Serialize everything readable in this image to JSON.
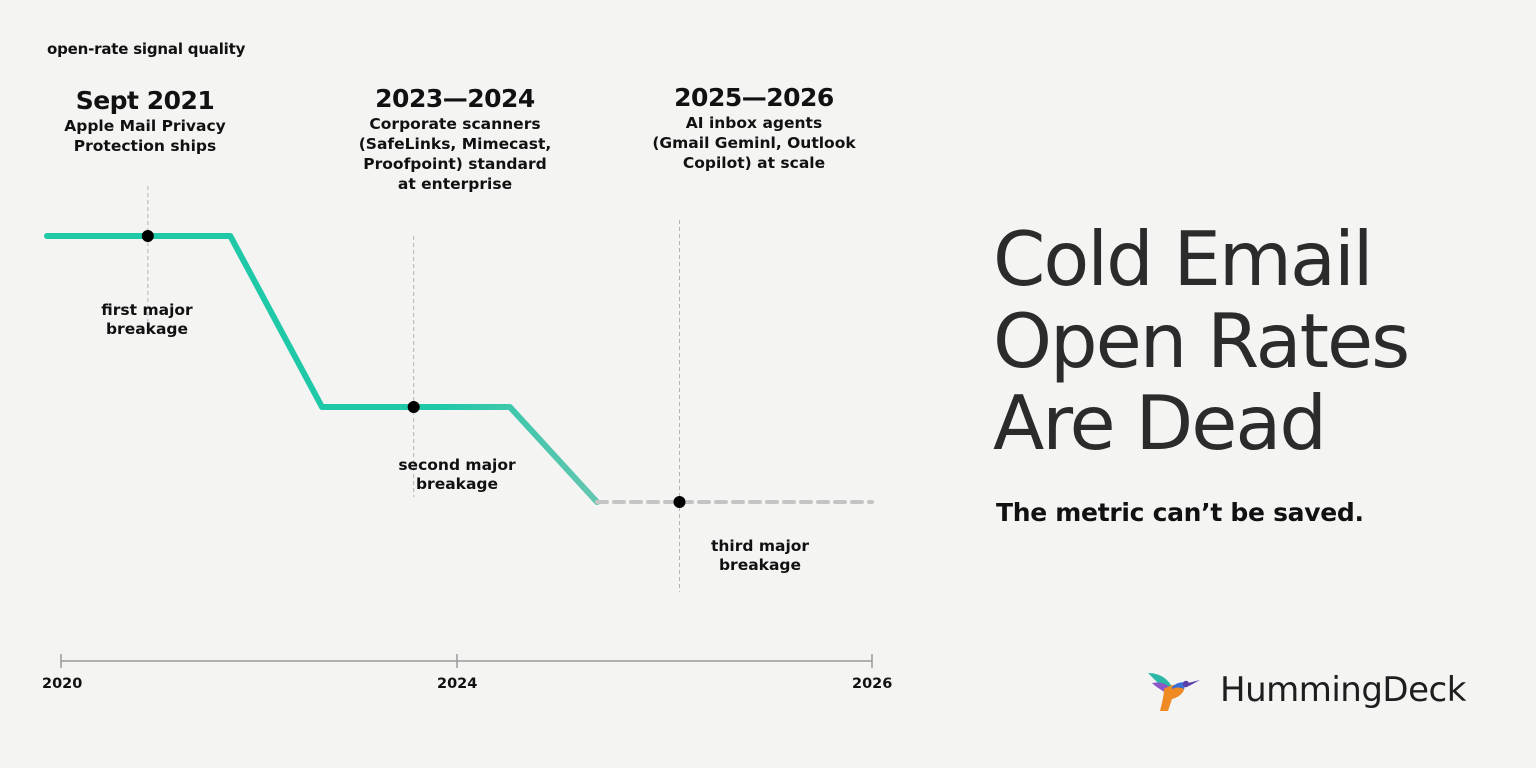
{
  "chart_data": {
    "type": "line",
    "ylabel": "open-rate signal quality",
    "x_ticks": [
      "2020",
      "2024",
      "2026"
    ],
    "series": [
      {
        "x": [
          2020,
          2020.95,
          2022,
          2023,
          2024,
          2025.05,
          2026
        ],
        "y": [
          1.0,
          1.0,
          1.0,
          0.55,
          0.55,
          0.55,
          0.3
        ]
      },
      {
        "style": "dashed",
        "x": [
          2026,
          2029
        ],
        "y": [
          0.3,
          0.3
        ]
      }
    ],
    "events": [
      {
        "date": "Sept 2021",
        "desc": "Apple Mail Privacy\nProtection ships",
        "label": "first major\nbreakage",
        "y": 1.0
      },
      {
        "date": "2023—2024",
        "desc": "Corporate scanners\n(SafeLinks, Mimecast,\nProofpoint) standard\nat enterprise",
        "label": "second major\nbreakage",
        "y": 0.55
      },
      {
        "date": "2025—2026",
        "desc": "AI inbox agents\n(Gmail Geminl, Outlook\nCopilot) at scale",
        "label": "third major\nbreakage",
        "y": 0.3
      }
    ],
    "colors": {
      "solid": "#1fc9a8",
      "faded": "#7cc4b3",
      "dashed": "#c4c4c4",
      "marker": "#000000"
    }
  },
  "title": "Cold Email\nOpen Rates\nAre Dead",
  "subtitle": "The metric can’t be saved.",
  "brand": {
    "name": "HummingDeck",
    "logo_icon": "hummingbird-icon"
  }
}
